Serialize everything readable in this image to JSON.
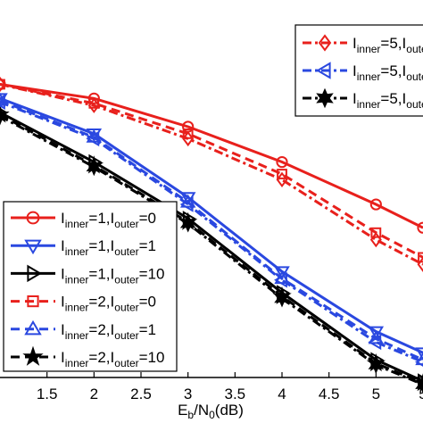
{
  "chart_data": {
    "type": "line",
    "xlabel": "E_b/N_0(dB)",
    "xlabel_parts": {
      "E": "E",
      "b": "b",
      "slash": "/N",
      "zero": "0",
      "unit": "(dB)"
    },
    "xlim": [
      1.0,
      5.5
    ],
    "ylim_log": [
      -5.0,
      -0.2
    ],
    "x_tick_values": [
      1.5,
      2,
      2.5,
      3,
      3.5,
      4,
      4.5,
      5
    ],
    "x_tick_labels": [
      "1.5",
      "2",
      "2.5",
      "3",
      "3.5",
      "4",
      "4.5",
      "5"
    ],
    "x_tick_partial_label": "5",
    "grid": false,
    "legend_placement": [
      "top-right",
      "bottom-left"
    ],
    "series": [
      {
        "key": "s1",
        "legend_group": "left",
        "label_parts": [
          "I",
          "inner",
          "=1,I",
          "outer",
          "=0"
        ],
        "color": "#e8201c",
        "dash": "solid",
        "marker": "circle",
        "x": [
          1,
          2,
          3,
          4,
          5,
          5.5
        ],
        "log10_y": [
          -0.85,
          -1.05,
          -1.45,
          -1.95,
          -2.55,
          -2.88
        ]
      },
      {
        "key": "s2",
        "legend_group": "left",
        "label_parts": [
          "I",
          "inner",
          "=1,I",
          "outer",
          "=1"
        ],
        "color": "#2a48e0",
        "dash": "solid",
        "marker": "triangle-down",
        "x": [
          1,
          2,
          3,
          4,
          5,
          5.5
        ],
        "log10_y": [
          -1.05,
          -1.55,
          -2.45,
          -3.5,
          -4.35,
          -4.65
        ]
      },
      {
        "key": "s3",
        "legend_group": "left",
        "label_parts": [
          "I",
          "inner",
          "=1,I",
          "outer",
          "=10"
        ],
        "color": "#000000",
        "dash": "solid",
        "marker": "triangle-right",
        "x": [
          1,
          2,
          3,
          4,
          5,
          5.5
        ],
        "log10_y": [
          -1.25,
          -1.95,
          -2.75,
          -3.8,
          -4.75,
          -5.05
        ]
      },
      {
        "key": "s4",
        "legend_group": "left",
        "label_parts": [
          "I",
          "inner",
          "=2,I",
          "outer",
          "=0"
        ],
        "color": "#e8201c",
        "dash": "dashed",
        "marker": "square",
        "x": [
          1,
          2,
          3,
          4,
          5,
          5.5
        ],
        "log10_y": [
          -0.85,
          -1.12,
          -1.55,
          -2.12,
          -2.95,
          -3.3
        ]
      },
      {
        "key": "s5",
        "legend_group": "left",
        "label_parts": [
          "I",
          "inner",
          "=2,I",
          "outer",
          "=1"
        ],
        "color": "#2a48e0",
        "dash": "dashed",
        "marker": "triangle-up",
        "x": [
          1,
          2,
          3,
          4,
          5,
          5.5
        ],
        "log10_y": [
          -1.08,
          -1.6,
          -2.52,
          -3.6,
          -4.45,
          -4.75
        ]
      },
      {
        "key": "s6",
        "legend_group": "left",
        "label_parts": [
          "I",
          "inner",
          "=2,I",
          "outer",
          "=10"
        ],
        "color": "#000000",
        "dash": "dashed",
        "marker": "star",
        "x": [
          1,
          2,
          3,
          4,
          5,
          5.5
        ],
        "log10_y": [
          -1.28,
          -2.0,
          -2.8,
          -3.85,
          -4.8,
          -5.08
        ]
      },
      {
        "key": "s7",
        "legend_group": "right",
        "label_parts": [
          "I",
          "inner",
          "=5,I",
          "outer",
          ""
        ],
        "color": "#e8201c",
        "dash": "dashdot",
        "marker": "diamond",
        "x": [
          1,
          2,
          3,
          4,
          5,
          5.5
        ],
        "log10_y": [
          -0.85,
          -1.15,
          -1.62,
          -2.2,
          -3.05,
          -3.4
        ]
      },
      {
        "key": "s8",
        "legend_group": "right",
        "label_parts": [
          "I",
          "inner",
          "=5,I",
          "outer",
          ""
        ],
        "color": "#2a48e0",
        "dash": "dashdot",
        "marker": "triangle-left",
        "x": [
          1,
          2,
          3,
          4,
          5,
          5.5
        ],
        "log10_y": [
          -1.1,
          -1.62,
          -2.55,
          -3.62,
          -4.5,
          -4.78
        ]
      },
      {
        "key": "s9",
        "legend_group": "right",
        "label_parts": [
          "I",
          "inner",
          "=5,I",
          "outer",
          ""
        ],
        "color": "#000000",
        "dash": "dashdot",
        "marker": "hexagram",
        "x": [
          1,
          2,
          3,
          4,
          5,
          5.5
        ],
        "log10_y": [
          -1.3,
          -2.02,
          -2.82,
          -3.88,
          -4.82,
          -5.1
        ]
      }
    ]
  }
}
